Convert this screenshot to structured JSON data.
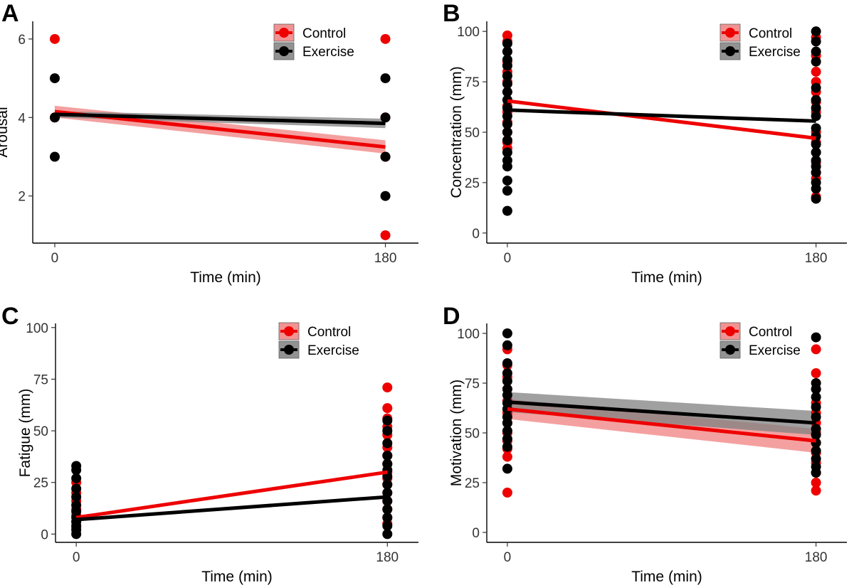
{
  "colors": {
    "control": "#ee0000",
    "control_band": "#f08080",
    "exercise": "#000000",
    "exercise_band": "#808080"
  },
  "legend": [
    "Control",
    "Exercise"
  ],
  "chart_data": [
    {
      "panel": "A",
      "type": "scatter",
      "xlabel": "Time (min)",
      "ylabel": "Arousal",
      "x_ticks": [
        0,
        180
      ],
      "y_ticks": [
        2,
        4,
        6
      ],
      "xlim": [
        -12,
        198
      ],
      "ylim": [
        0.8,
        6.45
      ],
      "legend_position": "top-right",
      "series": [
        {
          "name": "Control",
          "points": [
            [
              0,
              6
            ],
            [
              0,
              4
            ],
            [
              180,
              6
            ],
            [
              180,
              1
            ],
            [
              180,
              4
            ],
            [
              180,
              3
            ]
          ],
          "fit": [
            [
              0,
              4.15
            ],
            [
              180,
              3.25
            ]
          ],
          "band": [
            0.15,
            0.17
          ]
        },
        {
          "name": "Exercise",
          "points": [
            [
              0,
              5
            ],
            [
              0,
              4
            ],
            [
              0,
              3
            ],
            [
              180,
              5
            ],
            [
              180,
              4
            ],
            [
              180,
              3
            ],
            [
              180,
              2
            ]
          ],
          "fit": [
            [
              0,
              4.08
            ],
            [
              180,
              3.85
            ]
          ],
          "band": [
            0.08,
            0.12
          ]
        }
      ]
    },
    {
      "panel": "B",
      "type": "scatter",
      "xlabel": "Time (min)",
      "ylabel": "Concentration (mm)",
      "x_ticks": [
        0,
        180
      ],
      "y_ticks": [
        0,
        25,
        50,
        75,
        100
      ],
      "xlim": [
        -12,
        198
      ],
      "ylim": [
        -5,
        105
      ],
      "legend_position": "top-right",
      "series": [
        {
          "name": "Control",
          "points": [
            [
              0,
              98
            ],
            [
              0,
              95
            ],
            [
              0,
              90
            ],
            [
              0,
              85
            ],
            [
              0,
              80
            ],
            [
              0,
              75
            ],
            [
              0,
              70
            ],
            [
              0,
              63
            ],
            [
              0,
              60
            ],
            [
              0,
              55
            ],
            [
              0,
              50
            ],
            [
              0,
              45
            ],
            [
              0,
              42
            ],
            [
              180,
              97
            ],
            [
              180,
              88
            ],
            [
              180,
              80
            ],
            [
              180,
              75
            ],
            [
              180,
              70
            ],
            [
              180,
              65
            ],
            [
              180,
              60
            ],
            [
              180,
              50
            ],
            [
              180,
              45
            ],
            [
              180,
              40
            ],
            [
              180,
              35
            ],
            [
              180,
              30
            ],
            [
              180,
              27
            ],
            [
              180,
              18
            ]
          ],
          "fit": [
            [
              0,
              65.5
            ],
            [
              180,
              47
            ]
          ]
        },
        {
          "name": "Exercise",
          "points": [
            [
              0,
              94
            ],
            [
              0,
              90
            ],
            [
              0,
              86
            ],
            [
              0,
              83
            ],
            [
              0,
              78
            ],
            [
              0,
              74
            ],
            [
              0,
              70
            ],
            [
              0,
              66
            ],
            [
              0,
              62
            ],
            [
              0,
              58
            ],
            [
              0,
              54
            ],
            [
              0,
              50
            ],
            [
              0,
              46
            ],
            [
              0,
              40
            ],
            [
              0,
              36
            ],
            [
              0,
              33
            ],
            [
              0,
              26
            ],
            [
              0,
              21
            ],
            [
              0,
              11
            ],
            [
              180,
              100
            ],
            [
              180,
              95
            ],
            [
              180,
              90
            ],
            [
              180,
              85
            ],
            [
              180,
              72
            ],
            [
              180,
              66
            ],
            [
              180,
              62
            ],
            [
              180,
              58
            ],
            [
              180,
              52
            ],
            [
              180,
              48
            ],
            [
              180,
              44
            ],
            [
              180,
              40
            ],
            [
              180,
              36
            ],
            [
              180,
              33
            ],
            [
              180,
              30
            ],
            [
              180,
              25
            ],
            [
              180,
              22
            ],
            [
              180,
              17
            ]
          ],
          "fit": [
            [
              0,
              61
            ],
            [
              180,
              55.5
            ]
          ]
        }
      ]
    },
    {
      "panel": "C",
      "type": "scatter",
      "xlabel": "Time (min)",
      "ylabel": "Fatigue (mm)",
      "x_ticks": [
        0,
        180
      ],
      "y_ticks": [
        0,
        25,
        50,
        75,
        100
      ],
      "xlim": [
        -12,
        198
      ],
      "ylim": [
        -4,
        102
      ],
      "legend_position": "top-right",
      "series": [
        {
          "name": "Control",
          "points": [
            [
              0,
              25
            ],
            [
              0,
              20
            ],
            [
              0,
              16
            ],
            [
              0,
              12
            ],
            [
              0,
              9
            ],
            [
              0,
              6
            ],
            [
              0,
              3
            ],
            [
              180,
              71
            ],
            [
              180,
              61
            ],
            [
              180,
              56
            ],
            [
              180,
              52
            ],
            [
              180,
              48
            ],
            [
              180,
              42
            ],
            [
              180,
              38
            ],
            [
              180,
              34
            ],
            [
              180,
              30
            ],
            [
              180,
              27
            ],
            [
              180,
              24
            ],
            [
              180,
              20
            ],
            [
              180,
              16
            ],
            [
              180,
              12
            ],
            [
              180,
              8
            ],
            [
              180,
              5
            ]
          ],
          "fit": [
            [
              0,
              8
            ],
            [
              180,
              30
            ]
          ]
        },
        {
          "name": "Exercise",
          "points": [
            [
              0,
              33
            ],
            [
              0,
              31
            ],
            [
              0,
              27
            ],
            [
              0,
              22
            ],
            [
              0,
              18
            ],
            [
              0,
              14
            ],
            [
              0,
              11
            ],
            [
              0,
              8
            ],
            [
              0,
              6
            ],
            [
              0,
              4
            ],
            [
              0,
              2
            ],
            [
              0,
              0
            ],
            [
              180,
              55
            ],
            [
              180,
              50
            ],
            [
              180,
              44
            ],
            [
              180,
              38
            ],
            [
              180,
              34
            ],
            [
              180,
              31
            ],
            [
              180,
              28
            ],
            [
              180,
              24
            ],
            [
              180,
              20
            ],
            [
              180,
              16
            ],
            [
              180,
              12
            ],
            [
              180,
              8
            ],
            [
              180,
              4
            ],
            [
              180,
              0
            ]
          ],
          "fit": [
            [
              0,
              7
            ],
            [
              180,
              18
            ]
          ]
        }
      ]
    },
    {
      "panel": "D",
      "type": "scatter",
      "xlabel": "Time (min)",
      "ylabel": "Motivation (mm)",
      "x_ticks": [
        0,
        180
      ],
      "y_ticks": [
        0,
        25,
        50,
        75,
        100
      ],
      "xlim": [
        -12,
        198
      ],
      "ylim": [
        -5,
        105
      ],
      "legend_position": "top-right",
      "series": [
        {
          "name": "Control",
          "points": [
            [
              0,
              92
            ],
            [
              0,
              84
            ],
            [
              0,
              78
            ],
            [
              0,
              72
            ],
            [
              0,
              66
            ],
            [
              0,
              60
            ],
            [
              0,
              55
            ],
            [
              0,
              50
            ],
            [
              0,
              46
            ],
            [
              0,
              42
            ],
            [
              0,
              38
            ],
            [
              0,
              20
            ],
            [
              180,
              92
            ],
            [
              180,
              80
            ],
            [
              180,
              72
            ],
            [
              180,
              65
            ],
            [
              180,
              60
            ],
            [
              180,
              55
            ],
            [
              180,
              50
            ],
            [
              180,
              45
            ],
            [
              180,
              40
            ],
            [
              180,
              35
            ],
            [
              180,
              30
            ],
            [
              180,
              25
            ],
            [
              180,
              21
            ]
          ],
          "fit": [
            [
              0,
              62
            ],
            [
              180,
              46
            ]
          ],
          "band": [
            5,
            6
          ]
        },
        {
          "name": "Exercise",
          "points": [
            [
              0,
              100
            ],
            [
              0,
              94
            ],
            [
              0,
              85
            ],
            [
              0,
              80
            ],
            [
              0,
              76
            ],
            [
              0,
              72
            ],
            [
              0,
              69
            ],
            [
              0,
              65
            ],
            [
              0,
              62
            ],
            [
              0,
              58
            ],
            [
              0,
              55
            ],
            [
              0,
              51
            ],
            [
              0,
              47
            ],
            [
              0,
              43
            ],
            [
              0,
              32
            ],
            [
              180,
              98
            ],
            [
              180,
              75
            ],
            [
              180,
              72
            ],
            [
              180,
              68
            ],
            [
              180,
              63
            ],
            [
              180,
              58
            ],
            [
              180,
              52
            ],
            [
              180,
              49
            ],
            [
              180,
              45
            ],
            [
              180,
              41
            ],
            [
              180,
              37
            ],
            [
              180,
              33
            ],
            [
              180,
              30
            ]
          ],
          "fit": [
            [
              0,
              65.5
            ],
            [
              180,
              55
            ]
          ],
          "band": [
            5,
            6
          ]
        }
      ]
    }
  ]
}
